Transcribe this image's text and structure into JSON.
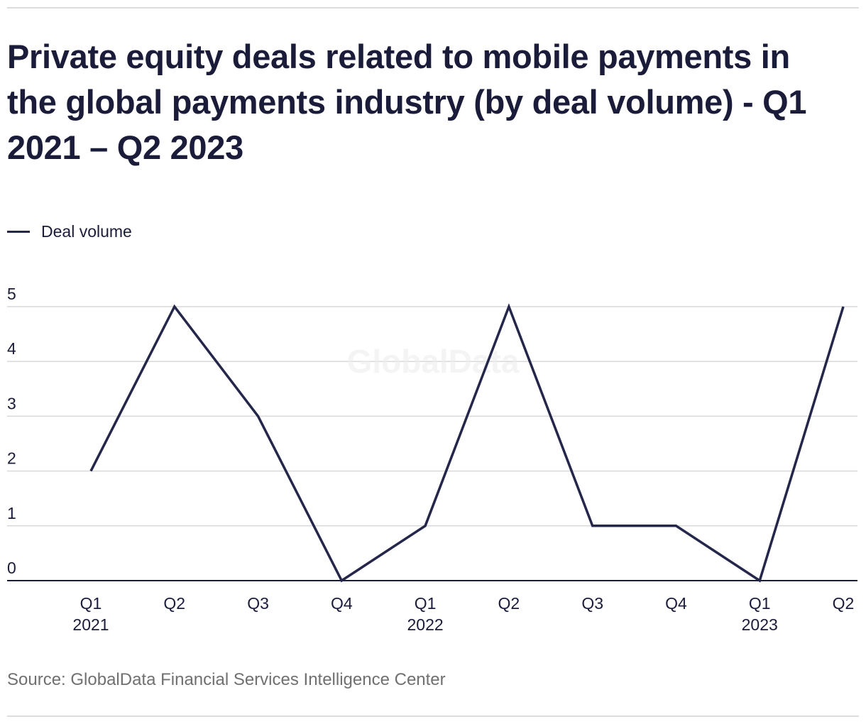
{
  "title": "Private equity deals related to mobile payments in the global payments industry (by deal volume) - Q1 2021 – Q2 2023",
  "legend": {
    "label": "Deal volume"
  },
  "watermark": "GlobalData",
  "source": "Source: GlobalData Financial Services Intelligence Center",
  "colors": {
    "line": "#24264a",
    "grid": "#d9d9d9",
    "axis": "#1b1c3a",
    "text": "#1b1c3a",
    "source": "#707070"
  },
  "chart_data": {
    "type": "line",
    "title": "Private equity deals related to mobile payments in the global payments industry (by deal volume) - Q1 2021 – Q2 2023",
    "xlabel": "",
    "ylabel": "",
    "categories": [
      {
        "quarter": "Q1",
        "year": "2021"
      },
      {
        "quarter": "Q2",
        "year": ""
      },
      {
        "quarter": "Q3",
        "year": ""
      },
      {
        "quarter": "Q4",
        "year": ""
      },
      {
        "quarter": "Q1",
        "year": "2022"
      },
      {
        "quarter": "Q2",
        "year": ""
      },
      {
        "quarter": "Q3",
        "year": ""
      },
      {
        "quarter": "Q4",
        "year": ""
      },
      {
        "quarter": "Q1",
        "year": "2023"
      },
      {
        "quarter": "Q2",
        "year": ""
      }
    ],
    "series": [
      {
        "name": "Deal volume",
        "values": [
          2,
          5,
          3,
          0,
          1,
          5,
          1,
          1,
          0,
          5
        ]
      }
    ],
    "yticks": [
      0,
      1,
      2,
      3,
      4,
      5
    ],
    "ylim": [
      0,
      5
    ],
    "grid": true,
    "legend_position": "top-left"
  }
}
